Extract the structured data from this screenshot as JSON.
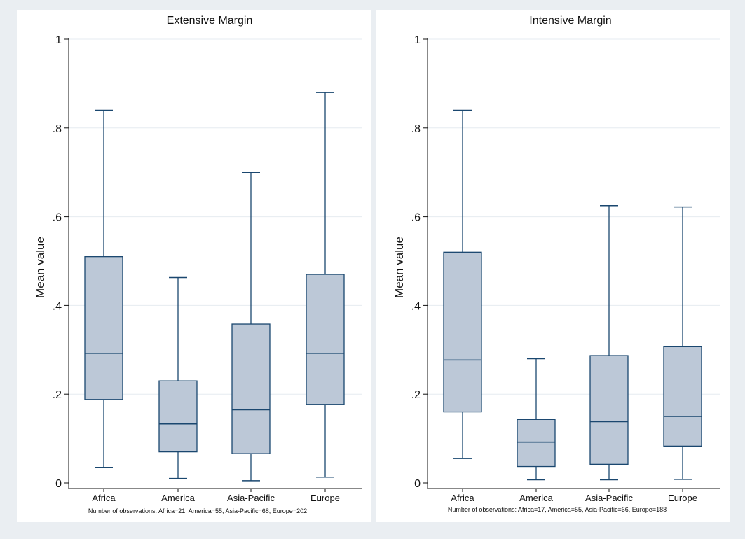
{
  "chart_data": [
    {
      "type": "boxplot",
      "title": "Extensive Margin",
      "ylabel": "Mean value",
      "xlabel": "",
      "ylim": [
        0,
        1
      ],
      "yticks": [
        0,
        0.2,
        0.4,
        0.6,
        0.8,
        1
      ],
      "ytick_labels": [
        "0",
        ".2",
        ".4",
        ".6",
        ".8",
        "1"
      ],
      "grid": true,
      "categories": [
        "Africa",
        "America",
        "Asia-Pacific",
        "Europe"
      ],
      "boxes": [
        {
          "category": "Africa",
          "whisker_low": 0.035,
          "q1": 0.188,
          "median": 0.292,
          "q3": 0.51,
          "whisker_high": 0.84
        },
        {
          "category": "America",
          "whisker_low": 0.01,
          "q1": 0.07,
          "median": 0.133,
          "q3": 0.23,
          "whisker_high": 0.463
        },
        {
          "category": "Asia-Pacific",
          "whisker_low": 0.005,
          "q1": 0.066,
          "median": 0.165,
          "q3": 0.358,
          "whisker_high": 0.7
        },
        {
          "category": "Europe",
          "whisker_low": 0.013,
          "q1": 0.177,
          "median": 0.292,
          "q3": 0.47,
          "whisker_high": 0.88
        }
      ],
      "note": "Number of observations: Africa=21, America=55, Asia-Pacific=68, Europe=202"
    },
    {
      "type": "boxplot",
      "title": "Intensive Margin",
      "ylabel": "Mean value",
      "xlabel": "",
      "ylim": [
        0,
        1
      ],
      "yticks": [
        0,
        0.2,
        0.4,
        0.6,
        0.8,
        1
      ],
      "ytick_labels": [
        "0",
        ".2",
        ".4",
        ".6",
        ".8",
        "1"
      ],
      "grid": true,
      "categories": [
        "Africa",
        "America",
        "Asia-Pacific",
        "Europe"
      ],
      "boxes": [
        {
          "category": "Africa",
          "whisker_low": 0.055,
          "q1": 0.16,
          "median": 0.277,
          "q3": 0.52,
          "whisker_high": 0.84
        },
        {
          "category": "America",
          "whisker_low": 0.007,
          "q1": 0.037,
          "median": 0.092,
          "q3": 0.143,
          "whisker_high": 0.28
        },
        {
          "category": "Asia-Pacific",
          "whisker_low": 0.007,
          "q1": 0.042,
          "median": 0.138,
          "q3": 0.287,
          "whisker_high": 0.625
        },
        {
          "category": "Europe",
          "whisker_low": 0.008,
          "q1": 0.083,
          "median": 0.15,
          "q3": 0.307,
          "whisker_high": 0.622
        }
      ],
      "note": "Number of observations: Africa=17, America=55, Asia-Pacific=66, Europe=188"
    }
  ],
  "colors": {
    "background": "#eaeef2",
    "plot_region": "#ffffff",
    "box_fill": "#bcc8d7",
    "box_stroke": "#1a476f",
    "grid": "#e6ebf0",
    "axis": "#111111"
  }
}
